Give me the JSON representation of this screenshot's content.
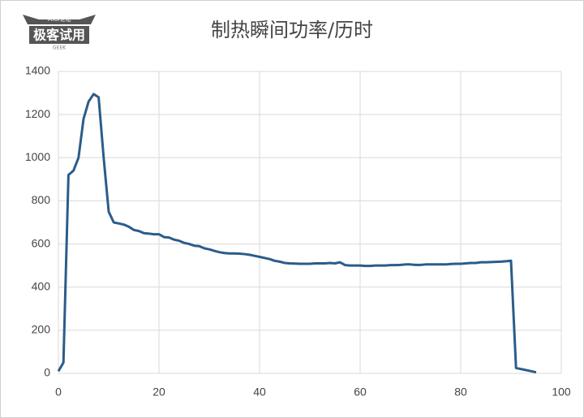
{
  "watermark": {
    "brand": "极客试用",
    "top": "MIUI论坛",
    "bottom": "GEEK"
  },
  "chart_data": {
    "type": "line",
    "title": "制热瞬间功率/历时",
    "color": "#2b5c8a",
    "grid": true,
    "x": [
      0,
      1,
      2,
      3,
      4,
      5,
      6,
      7,
      8,
      9,
      10,
      11,
      12,
      13,
      14,
      15,
      16,
      17,
      18,
      19,
      20,
      21,
      22,
      23,
      24,
      25,
      26,
      27,
      28,
      29,
      30,
      31,
      32,
      33,
      34,
      35,
      36,
      37,
      38,
      39,
      40,
      41,
      42,
      43,
      44,
      45,
      46,
      47,
      48,
      49,
      50,
      51,
      52,
      53,
      54,
      55,
      56,
      57,
      58,
      59,
      60,
      61,
      62,
      63,
      64,
      65,
      66,
      67,
      68,
      69,
      70,
      71,
      72,
      73,
      74,
      75,
      76,
      77,
      78,
      79,
      80,
      81,
      82,
      83,
      84,
      85,
      86,
      87,
      88,
      89,
      90,
      91,
      92,
      93,
      94,
      95
    ],
    "values": [
      10,
      50,
      920,
      940,
      1000,
      1180,
      1260,
      1295,
      1280,
      1000,
      750,
      700,
      695,
      690,
      680,
      665,
      660,
      650,
      648,
      645,
      645,
      632,
      630,
      620,
      615,
      605,
      600,
      592,
      590,
      580,
      575,
      568,
      562,
      558,
      556,
      556,
      555,
      553,
      550,
      545,
      540,
      535,
      530,
      522,
      518,
      512,
      510,
      509,
      508,
      508,
      508,
      510,
      510,
      510,
      512,
      510,
      515,
      502,
      500,
      500,
      500,
      498,
      498,
      500,
      500,
      500,
      502,
      502,
      503,
      505,
      505,
      503,
      503,
      505,
      505,
      505,
      505,
      505,
      507,
      508,
      508,
      510,
      512,
      512,
      515,
      515,
      516,
      517,
      518,
      520,
      522,
      25,
      20,
      15,
      10,
      5
    ],
    "xlim": [
      0,
      100
    ],
    "xticks": [
      0,
      20,
      40,
      60,
      80,
      100
    ],
    "ylim": [
      0,
      1400
    ],
    "yticks": [
      0,
      200,
      400,
      600,
      800,
      1000,
      1200,
      1400
    ]
  }
}
